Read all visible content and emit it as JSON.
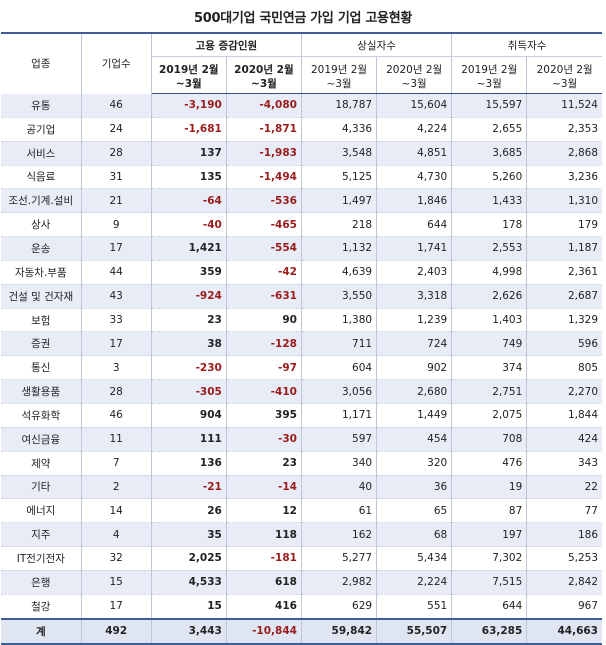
{
  "title": "500대기업 국민연금 가입 기업 고용현황",
  "headers": {
    "industry": "업종",
    "company_count": "기업수",
    "groups": [
      "고용 증감인원",
      "상실자수",
      "취득자수"
    ],
    "periods": [
      {
        "line1": "2019년 2월",
        "line2": "~3월"
      },
      {
        "line1": "2020년 2월",
        "line2": "~3월"
      }
    ]
  },
  "rows": [
    {
      "industry": "유통",
      "count": "46",
      "v": [
        "-3,190",
        "-4,080",
        "18,787",
        "15,604",
        "15,597",
        "11,524"
      ]
    },
    {
      "industry": "공기업",
      "count": "24",
      "v": [
        "-1,681",
        "-1,871",
        "4,336",
        "4,224",
        "2,655",
        "2,353"
      ]
    },
    {
      "industry": "서비스",
      "count": "28",
      "v": [
        "137",
        "-1,983",
        "3,548",
        "4,851",
        "3,685",
        "2,868"
      ]
    },
    {
      "industry": "식음료",
      "count": "31",
      "v": [
        "135",
        "-1,494",
        "5,125",
        "4,730",
        "5,260",
        "3,236"
      ]
    },
    {
      "industry": "조선.기계.설비",
      "count": "21",
      "v": [
        "-64",
        "-536",
        "1,497",
        "1,846",
        "1,433",
        "1,310"
      ]
    },
    {
      "industry": "상사",
      "count": "9",
      "v": [
        "-40",
        "-465",
        "218",
        "644",
        "178",
        "179"
      ]
    },
    {
      "industry": "운송",
      "count": "17",
      "v": [
        "1,421",
        "-554",
        "1,132",
        "1,741",
        "2,553",
        "1,187"
      ]
    },
    {
      "industry": "자동차.부품",
      "count": "44",
      "v": [
        "359",
        "-42",
        "4,639",
        "2,403",
        "4,998",
        "2,361"
      ]
    },
    {
      "industry": "건설 및 건자재",
      "count": "43",
      "v": [
        "-924",
        "-631",
        "3,550",
        "3,318",
        "2,626",
        "2,687"
      ]
    },
    {
      "industry": "보험",
      "count": "33",
      "v": [
        "23",
        "90",
        "1,380",
        "1,239",
        "1,403",
        "1,329"
      ]
    },
    {
      "industry": "증권",
      "count": "17",
      "v": [
        "38",
        "-128",
        "711",
        "724",
        "749",
        "596"
      ]
    },
    {
      "industry": "통신",
      "count": "3",
      "v": [
        "-230",
        "-97",
        "604",
        "902",
        "374",
        "805"
      ]
    },
    {
      "industry": "생활용품",
      "count": "28",
      "v": [
        "-305",
        "-410",
        "3,056",
        "2,680",
        "2,751",
        "2,270"
      ]
    },
    {
      "industry": "석유화학",
      "count": "46",
      "v": [
        "904",
        "395",
        "1,171",
        "1,449",
        "2,075",
        "1,844"
      ]
    },
    {
      "industry": "여신금융",
      "count": "11",
      "v": [
        "111",
        "-30",
        "597",
        "454",
        "708",
        "424"
      ]
    },
    {
      "industry": "제약",
      "count": "7",
      "v": [
        "136",
        "23",
        "340",
        "320",
        "476",
        "343"
      ]
    },
    {
      "industry": "기타",
      "count": "2",
      "v": [
        "-21",
        "-14",
        "40",
        "36",
        "19",
        "22"
      ]
    },
    {
      "industry": "에너지",
      "count": "14",
      "v": [
        "26",
        "12",
        "61",
        "65",
        "87",
        "77"
      ]
    },
    {
      "industry": "지주",
      "count": "4",
      "v": [
        "35",
        "118",
        "162",
        "68",
        "197",
        "186"
      ]
    },
    {
      "industry": "IT전기전자",
      "count": "32",
      "v": [
        "2,025",
        "-181",
        "5,277",
        "5,434",
        "7,302",
        "5,253"
      ]
    },
    {
      "industry": "은행",
      "count": "15",
      "v": [
        "4,533",
        "618",
        "2,982",
        "2,224",
        "7,515",
        "2,842"
      ]
    },
    {
      "industry": "철강",
      "count": "17",
      "v": [
        "15",
        "416",
        "629",
        "551",
        "644",
        "967"
      ]
    }
  ],
  "total": {
    "industry": "계",
    "count": "492",
    "v": [
      "3,443",
      "-10,844",
      "59,842",
      "55,507",
      "63,285",
      "44,663"
    ]
  },
  "colors": {
    "accent": "#3e5d97",
    "negative": "#9b1b1b",
    "stripe": "#e8ecf6"
  }
}
